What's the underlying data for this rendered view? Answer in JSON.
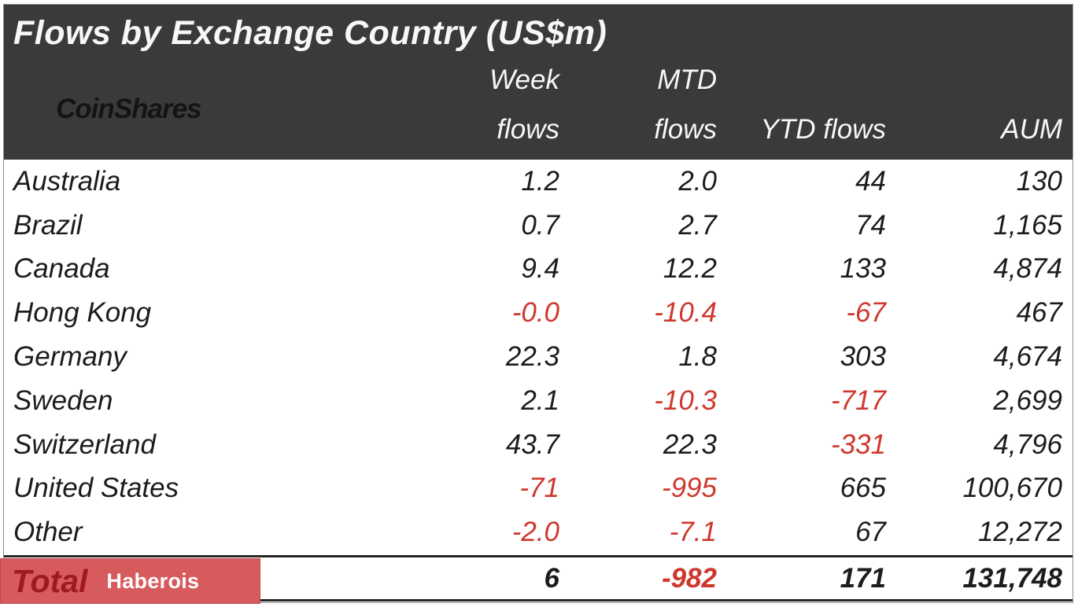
{
  "title": "Flows by Exchange Country (US$m)",
  "logo": "CoinShares",
  "header": {
    "week_line1": "Week",
    "week_line2": "flows",
    "mtd_line1": "MTD",
    "mtd_line2": "flows",
    "ytd": "YTD flows",
    "aum": "AUM"
  },
  "watermark": "Haberois",
  "colors": {
    "header_bg": "#3a3a3a",
    "header_fg": "#f7f7f7",
    "logo_fg": "#141414",
    "body_fg": "#1c1c1c",
    "negative": "#cf372c",
    "annotation_bg": "#d75a5d",
    "annotation_total_fg": "#9e1a1f",
    "annotation_label_fg": "#ffffff"
  },
  "chart_data": {
    "type": "table",
    "title": "Flows by Exchange Country (US$m)",
    "columns": [
      "Country",
      "Week flows",
      "MTD flows",
      "YTD flows",
      "AUM"
    ],
    "rows": [
      {
        "country": "Australia",
        "week": "1.2",
        "mtd": "2.0",
        "ytd": "44",
        "aum": "130"
      },
      {
        "country": "Brazil",
        "week": "0.7",
        "mtd": "2.7",
        "ytd": "74",
        "aum": "1,165"
      },
      {
        "country": "Canada",
        "week": "9.4",
        "mtd": "12.2",
        "ytd": "133",
        "aum": "4,874"
      },
      {
        "country": "Hong Kong",
        "week": "-0.0",
        "mtd": "-10.4",
        "ytd": "-67",
        "aum": "467"
      },
      {
        "country": "Germany",
        "week": "22.3",
        "mtd": "1.8",
        "ytd": "303",
        "aum": "4,674"
      },
      {
        "country": "Sweden",
        "week": "2.1",
        "mtd": "-10.3",
        "ytd": "-717",
        "aum": "2,699"
      },
      {
        "country": "Switzerland",
        "week": "43.7",
        "mtd": "22.3",
        "ytd": "-331",
        "aum": "4,796"
      },
      {
        "country": "United States",
        "week": "-71",
        "mtd": "-995",
        "ytd": "665",
        "aum": "100,670"
      },
      {
        "country": "Other",
        "week": "-2.0",
        "mtd": "-7.1",
        "ytd": "67",
        "aum": "12,272"
      }
    ],
    "total": {
      "label": "Total",
      "week": "6",
      "mtd": "-982",
      "ytd": "171",
      "aum": "131,748"
    },
    "negative_values_shown_in_red": true
  }
}
